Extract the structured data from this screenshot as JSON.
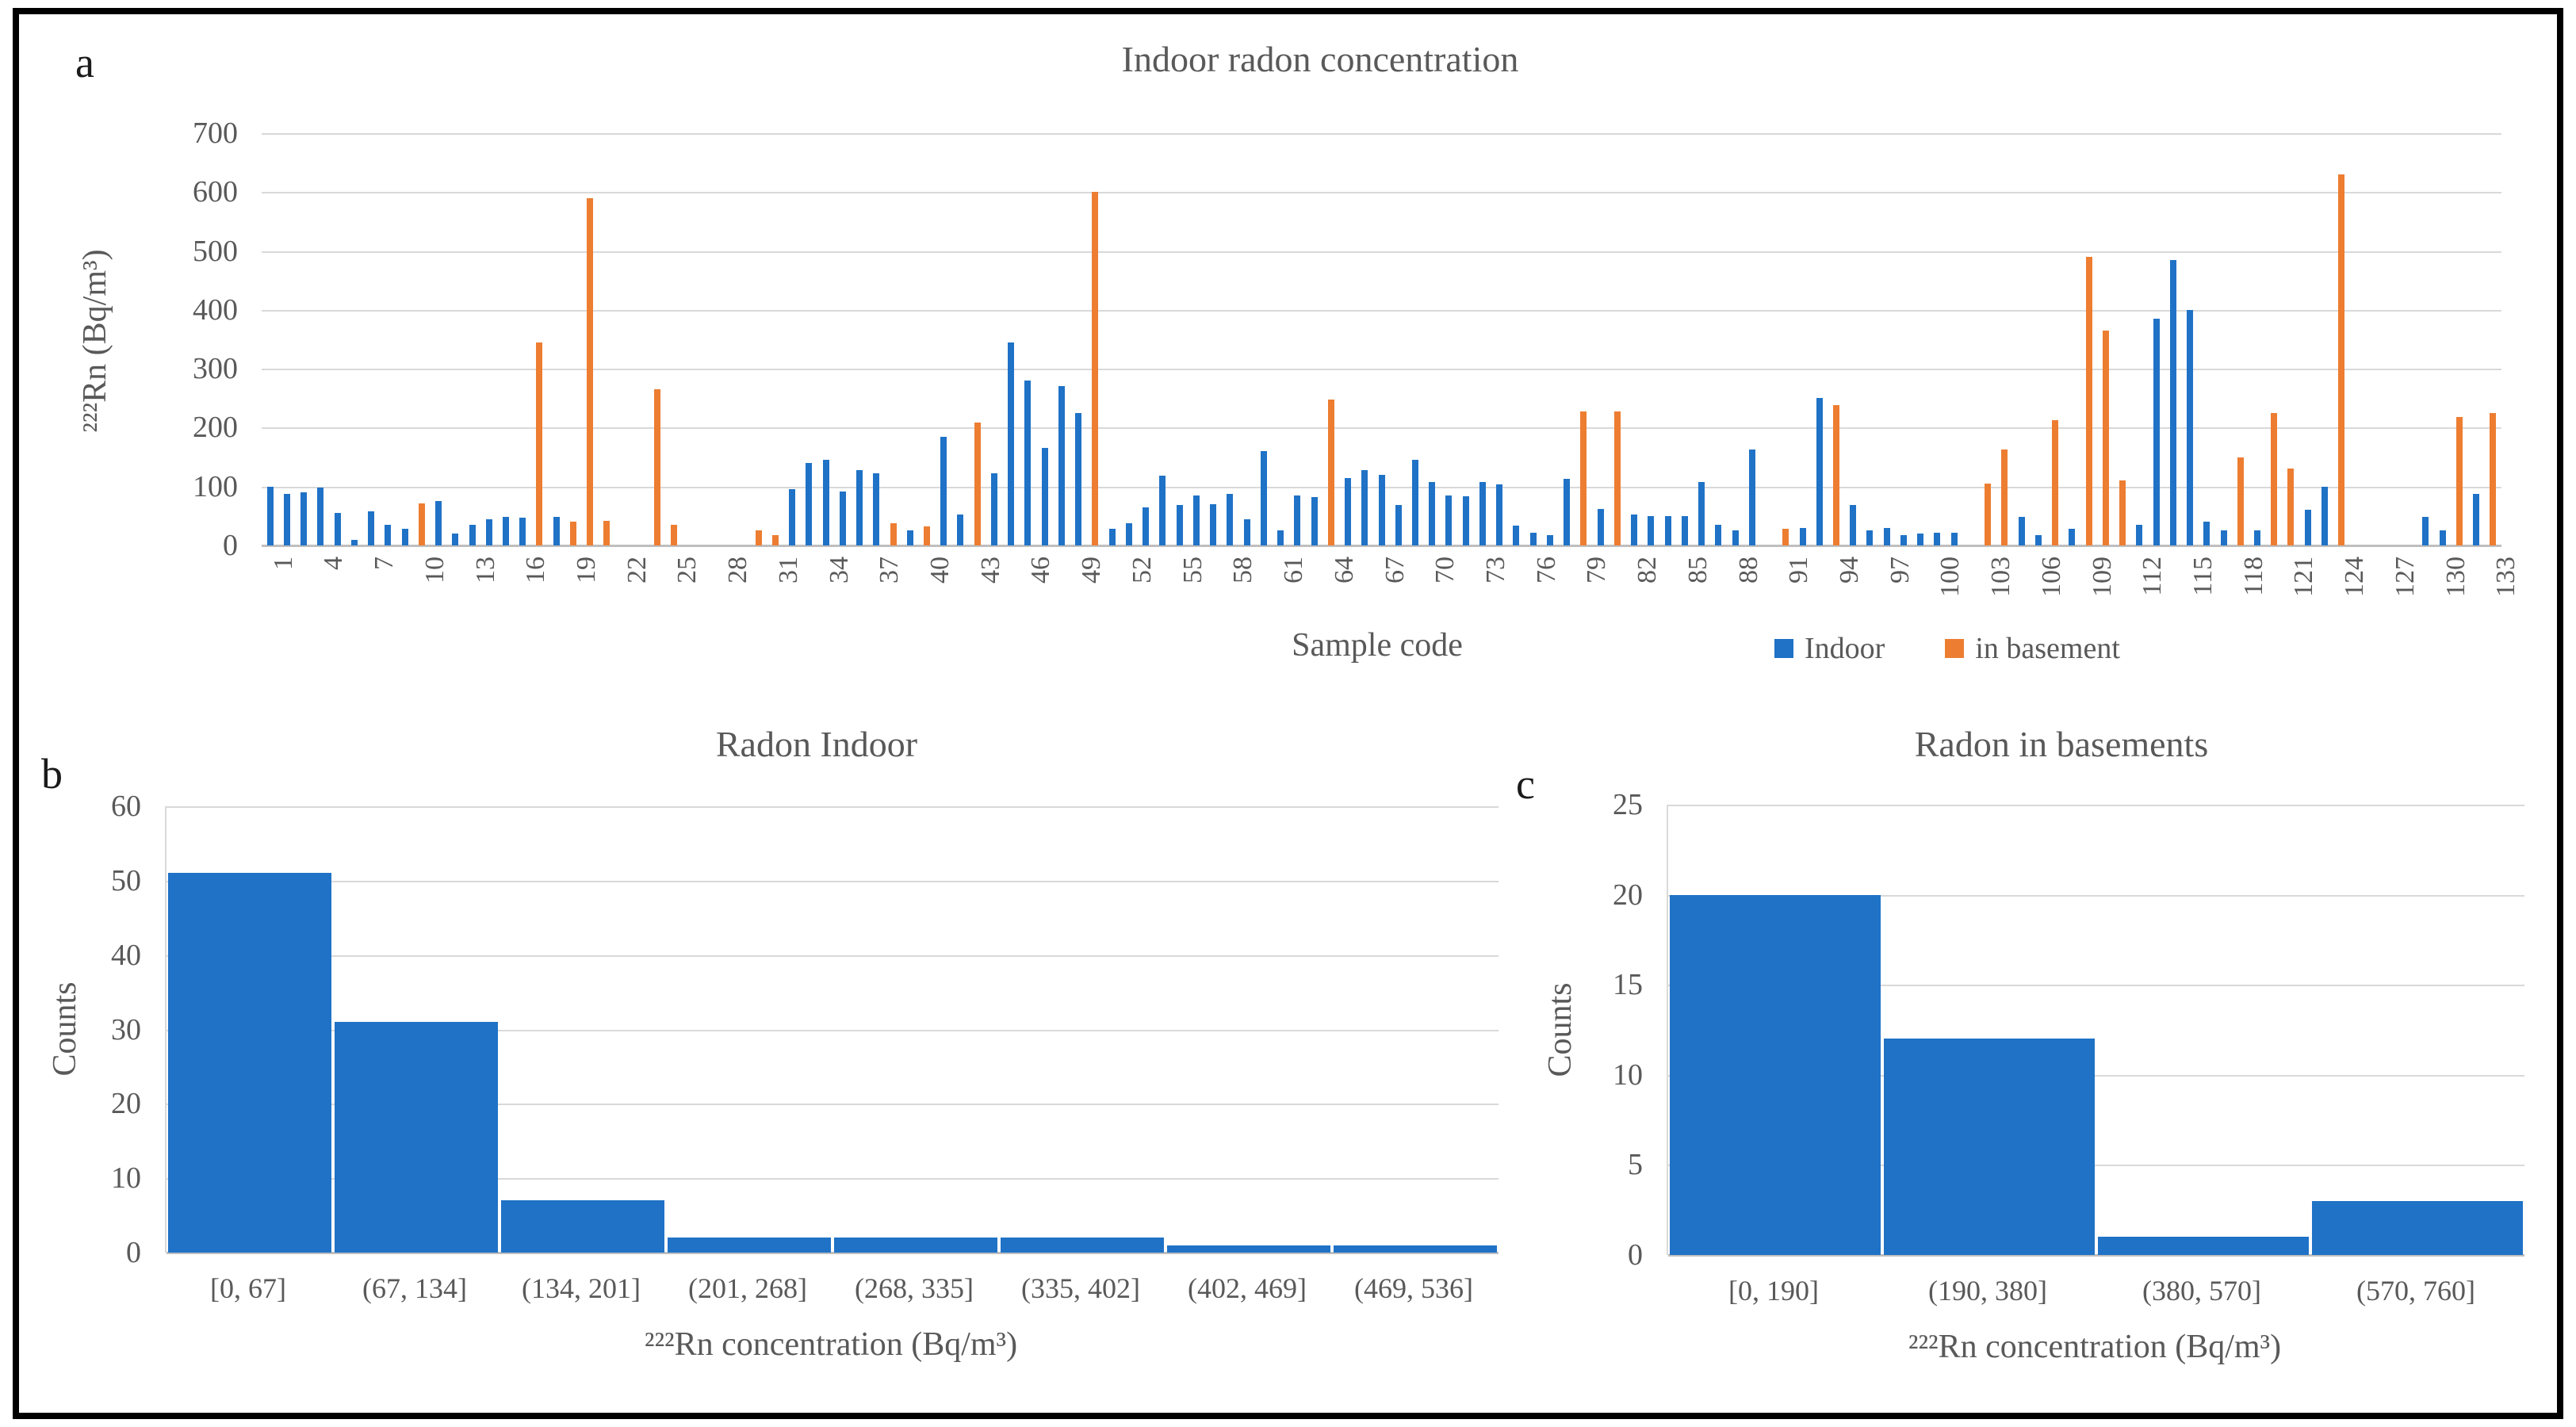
{
  "figure": {
    "panel_letters": {
      "a": "a",
      "b": "b",
      "c": "c"
    }
  },
  "colors": {
    "indoor_blue": "#1F72C6",
    "basement_orange": "#ED7D31",
    "gridline": "#D9D9D9",
    "axis": "#BFBFBF",
    "text": "#595959"
  },
  "chart_data": [
    {
      "id": "a",
      "type": "bar",
      "title": "Indoor radon concentration",
      "ylabel": "²²²Rn (Bq/m³)",
      "xlabel": "Sample  code",
      "ylim": [
        0,
        700
      ],
      "yticks": [
        0,
        100,
        200,
        300,
        400,
        500,
        600,
        700
      ],
      "n_samples": 133,
      "xtick_first": 1,
      "xtick_step": 3,
      "grid": true,
      "legend_position": "bottom-right",
      "legend": [
        {
          "label": "Indoor",
          "series": "indoor"
        },
        {
          "label": "in basement",
          "series": "basement"
        }
      ],
      "bars": [
        [
          1,
          100,
          "indoor"
        ],
        [
          2,
          88,
          "indoor"
        ],
        [
          3,
          90,
          "indoor"
        ],
        [
          4,
          98,
          "indoor"
        ],
        [
          5,
          55,
          "indoor"
        ],
        [
          6,
          10,
          "indoor"
        ],
        [
          7,
          58,
          "indoor"
        ],
        [
          8,
          35,
          "indoor"
        ],
        [
          9,
          28,
          "indoor"
        ],
        [
          10,
          72,
          "basement"
        ],
        [
          11,
          75,
          "indoor"
        ],
        [
          12,
          20,
          "indoor"
        ],
        [
          13,
          35,
          "indoor"
        ],
        [
          14,
          45,
          "indoor"
        ],
        [
          15,
          48,
          "indoor"
        ],
        [
          16,
          47,
          "indoor"
        ],
        [
          17,
          345,
          "basement"
        ],
        [
          18,
          48,
          "indoor"
        ],
        [
          19,
          40,
          "basement"
        ],
        [
          20,
          590,
          "basement"
        ],
        [
          21,
          42,
          "basement"
        ],
        [
          24,
          265,
          "basement"
        ],
        [
          25,
          35,
          "basement"
        ],
        [
          30,
          25,
          "basement"
        ],
        [
          31,
          18,
          "basement"
        ],
        [
          32,
          95,
          "indoor"
        ],
        [
          33,
          140,
          "indoor"
        ],
        [
          34,
          145,
          "indoor"
        ],
        [
          35,
          92,
          "indoor"
        ],
        [
          36,
          128,
          "indoor"
        ],
        [
          37,
          122,
          "indoor"
        ],
        [
          38,
          38,
          "basement"
        ],
        [
          39,
          25,
          "indoor"
        ],
        [
          40,
          32,
          "basement"
        ],
        [
          41,
          185,
          "indoor"
        ],
        [
          42,
          52,
          "indoor"
        ],
        [
          43,
          208,
          "basement"
        ],
        [
          44,
          122,
          "indoor"
        ],
        [
          45,
          345,
          "indoor"
        ],
        [
          46,
          280,
          "indoor"
        ],
        [
          47,
          165,
          "indoor"
        ],
        [
          48,
          270,
          "indoor"
        ],
        [
          49,
          225,
          "indoor"
        ],
        [
          50,
          600,
          "basement"
        ],
        [
          51,
          28,
          "indoor"
        ],
        [
          52,
          38,
          "indoor"
        ],
        [
          53,
          65,
          "indoor"
        ],
        [
          54,
          118,
          "indoor"
        ],
        [
          55,
          68,
          "indoor"
        ],
        [
          56,
          85,
          "indoor"
        ],
        [
          57,
          70,
          "indoor"
        ],
        [
          58,
          88,
          "indoor"
        ],
        [
          59,
          45,
          "indoor"
        ],
        [
          60,
          160,
          "indoor"
        ],
        [
          61,
          25,
          "indoor"
        ],
        [
          62,
          85,
          "indoor"
        ],
        [
          63,
          82,
          "indoor"
        ],
        [
          64,
          248,
          "basement"
        ],
        [
          65,
          115,
          "indoor"
        ],
        [
          66,
          128,
          "indoor"
        ],
        [
          67,
          120,
          "indoor"
        ],
        [
          68,
          68,
          "indoor"
        ],
        [
          69,
          145,
          "indoor"
        ],
        [
          70,
          108,
          "indoor"
        ],
        [
          71,
          85,
          "indoor"
        ],
        [
          72,
          83,
          "indoor"
        ],
        [
          73,
          108,
          "indoor"
        ],
        [
          74,
          103,
          "indoor"
        ],
        [
          75,
          33,
          "indoor"
        ],
        [
          76,
          22,
          "indoor"
        ],
        [
          77,
          18,
          "indoor"
        ],
        [
          78,
          113,
          "indoor"
        ],
        [
          79,
          228,
          "basement"
        ],
        [
          80,
          62,
          "indoor"
        ],
        [
          81,
          228,
          "basement"
        ],
        [
          82,
          52,
          "indoor"
        ],
        [
          83,
          50,
          "indoor"
        ],
        [
          84,
          50,
          "indoor"
        ],
        [
          85,
          50,
          "indoor"
        ],
        [
          86,
          108,
          "indoor"
        ],
        [
          87,
          35,
          "indoor"
        ],
        [
          88,
          25,
          "indoor"
        ],
        [
          89,
          163,
          "indoor"
        ],
        [
          91,
          28,
          "basement"
        ],
        [
          92,
          30,
          "indoor"
        ],
        [
          93,
          250,
          "indoor"
        ],
        [
          94,
          238,
          "basement"
        ],
        [
          95,
          68,
          "indoor"
        ],
        [
          96,
          25,
          "indoor"
        ],
        [
          97,
          30,
          "indoor"
        ],
        [
          98,
          18,
          "indoor"
        ],
        [
          99,
          20,
          "indoor"
        ],
        [
          100,
          22,
          "indoor"
        ],
        [
          101,
          22,
          "indoor"
        ],
        [
          103,
          105,
          "basement"
        ],
        [
          104,
          163,
          "basement"
        ],
        [
          105,
          48,
          "indoor"
        ],
        [
          106,
          18,
          "indoor"
        ],
        [
          107,
          213,
          "basement"
        ],
        [
          108,
          28,
          "indoor"
        ],
        [
          109,
          490,
          "basement"
        ],
        [
          110,
          365,
          "basement"
        ],
        [
          111,
          110,
          "basement"
        ],
        [
          112,
          35,
          "indoor"
        ],
        [
          113,
          385,
          "indoor"
        ],
        [
          114,
          485,
          "indoor"
        ],
        [
          115,
          400,
          "indoor"
        ],
        [
          116,
          40,
          "indoor"
        ],
        [
          117,
          25,
          "indoor"
        ],
        [
          118,
          150,
          "basement"
        ],
        [
          119,
          25,
          "indoor"
        ],
        [
          120,
          225,
          "basement"
        ],
        [
          121,
          130,
          "basement"
        ],
        [
          122,
          60,
          "indoor"
        ],
        [
          123,
          100,
          "indoor"
        ],
        [
          124,
          630,
          "basement"
        ],
        [
          129,
          48,
          "indoor"
        ],
        [
          130,
          25,
          "indoor"
        ],
        [
          131,
          218,
          "basement"
        ],
        [
          132,
          88,
          "indoor"
        ],
        [
          133,
          225,
          "basement"
        ]
      ]
    },
    {
      "id": "b",
      "type": "bar",
      "title": "Radon Indoor",
      "ylabel": "Counts",
      "xlabel": "²²²Rn concentration (Bq/m³)",
      "ylim": [
        0,
        60
      ],
      "yticks": [
        0,
        10,
        20,
        30,
        40,
        50,
        60
      ],
      "grid": true,
      "categories": [
        "[0, 67]",
        "(67, 134]",
        "(134, 201]",
        "(201, 268]",
        "(268, 335]",
        "(335, 402]",
        "(402, 469]",
        "(469, 536]"
      ],
      "values": [
        51,
        31,
        7,
        2,
        2,
        2,
        1,
        1
      ]
    },
    {
      "id": "c",
      "type": "bar",
      "title": "Radon in basements",
      "ylabel": "Counts",
      "xlabel": "²²²Rn concentration (Bq/m³)",
      "ylim": [
        0,
        25
      ],
      "yticks": [
        0,
        5,
        10,
        15,
        20,
        25
      ],
      "grid": true,
      "categories": [
        "[0, 190]",
        "(190, 380]",
        "(380, 570]",
        "(570, 760]"
      ],
      "values": [
        20,
        12,
        1,
        3
      ]
    }
  ]
}
